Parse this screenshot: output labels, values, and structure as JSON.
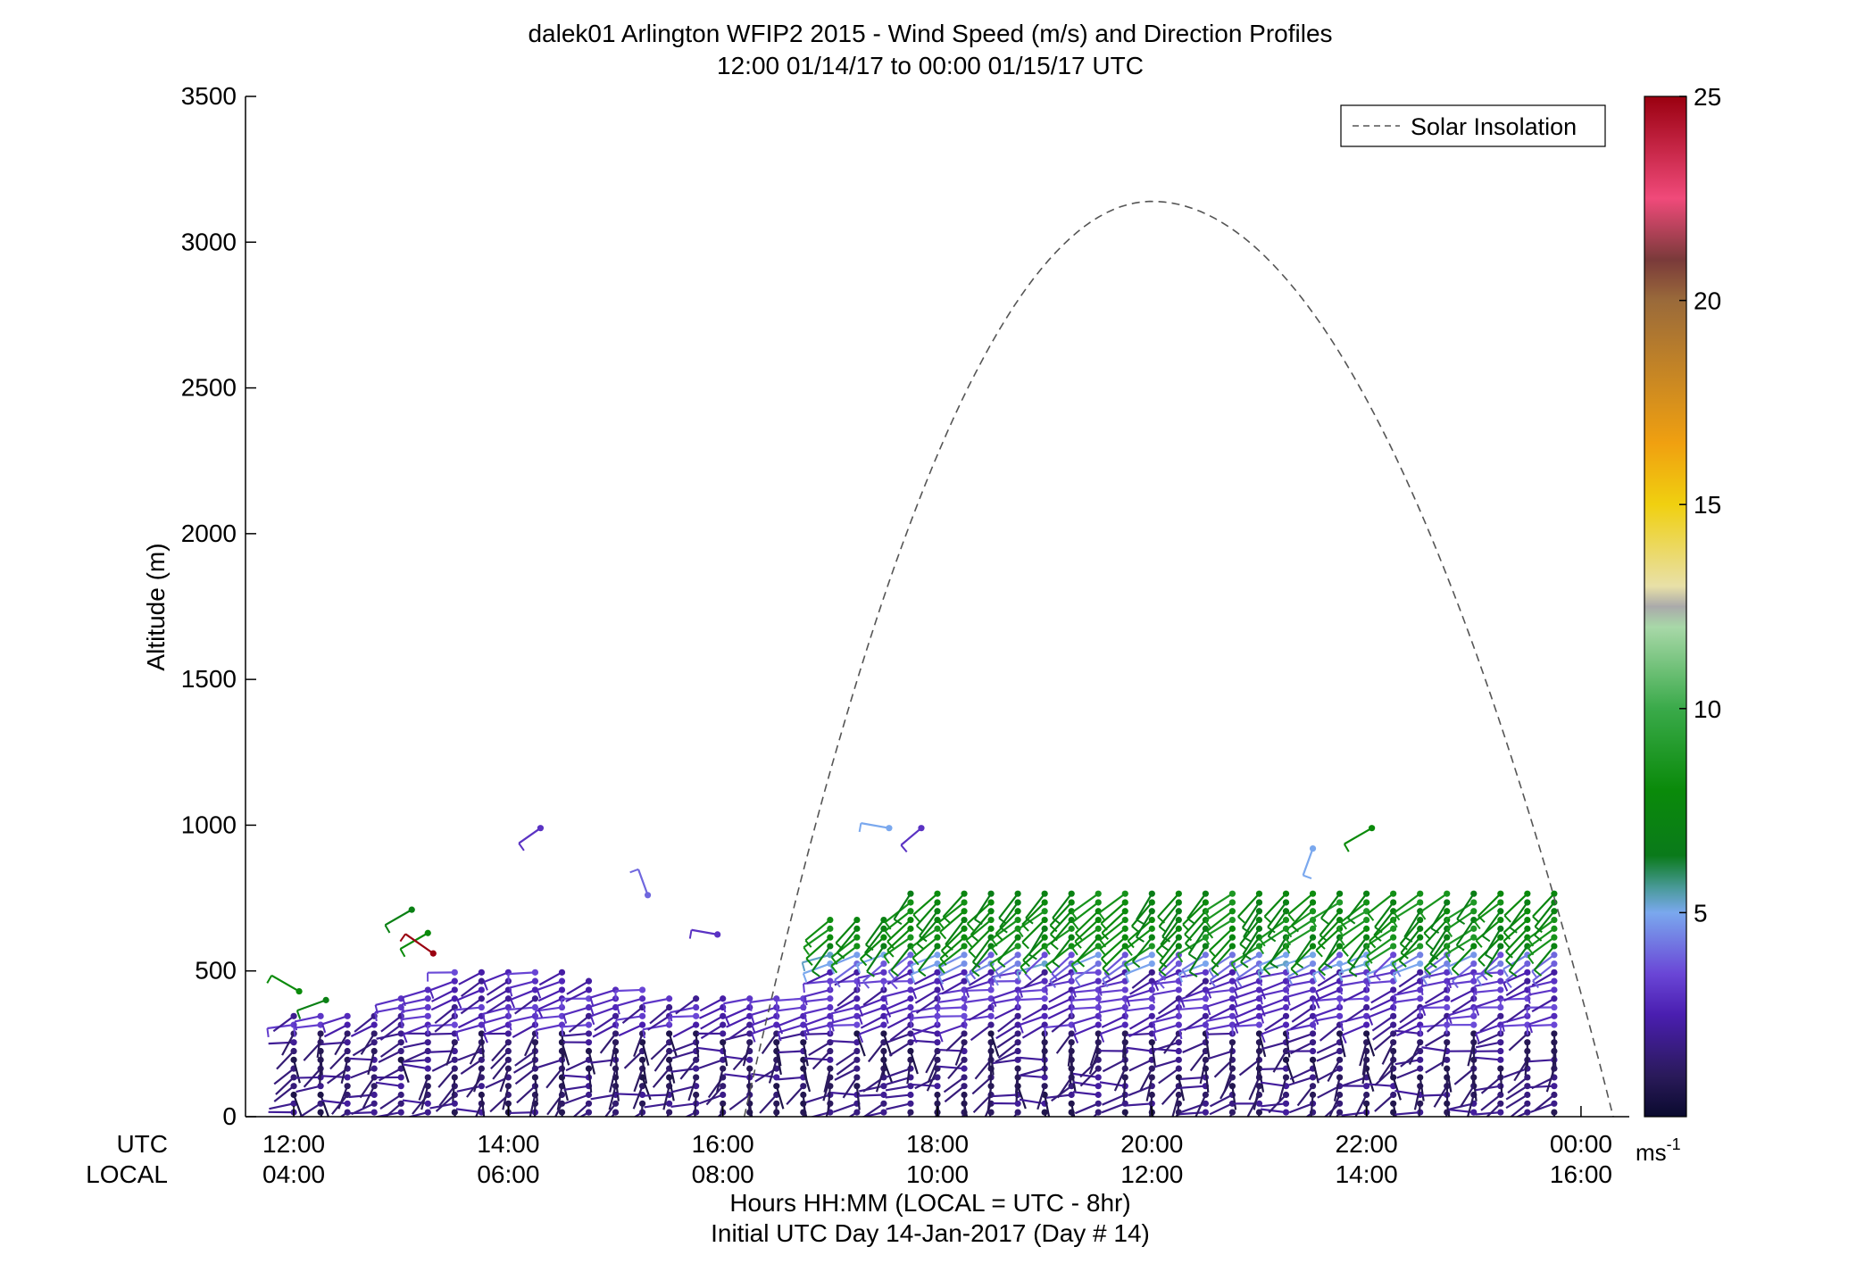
{
  "chart_data": {
    "type": "wind-barb-profile",
    "title": "dalek01 Arlington WFIP2 2015 - Wind Speed (m/s) and Direction Profiles",
    "subtitle": "12:00 01/14/17 to 00:00 01/15/17  UTC",
    "ylabel": "Altitude (m)",
    "xlabel": "Hours HH:MM  (LOCAL = UTC - 8hr)",
    "xlabel2": "Initial UTC Day 14-Jan-2017 (Day # 14)",
    "utc_row_label": "UTC",
    "local_row_label": "LOCAL",
    "ylim": [
      0,
      3500
    ],
    "y_ticks": [
      "0",
      "500",
      "1000",
      "1500",
      "2000",
      "2500",
      "3000",
      "3500"
    ],
    "utc_ticks": [
      "12:00",
      "14:00",
      "16:00",
      "18:00",
      "20:00",
      "22:00",
      "00:00"
    ],
    "local_ticks": [
      "04:00",
      "06:00",
      "08:00",
      "10:00",
      "12:00",
      "14:00",
      "16:00"
    ],
    "x_range_hours": [
      11.55,
      24.45
    ],
    "legend": {
      "entry": "Solar Insolation",
      "placement": "top-right",
      "line_style": "dashed",
      "color": "#555555"
    },
    "solar_insolation": {
      "start_hour": 16.2,
      "end_hour": 24.3,
      "peak_hour": 20.0,
      "peak_altitude": 3140
    },
    "colorbar": {
      "range": [
        0,
        25
      ],
      "ticks": [
        "5",
        "10",
        "15",
        "20",
        "25"
      ],
      "unit_label": "ms",
      "unit_exponent": "-1",
      "color_stops": [
        {
          "value": 0,
          "color": "#0a0a2e"
        },
        {
          "value": 1,
          "color": "#2a1a5a"
        },
        {
          "value": 2.5,
          "color": "#4a1eb0"
        },
        {
          "value": 3.5,
          "color": "#6a46d6"
        },
        {
          "value": 5,
          "color": "#7aa8ee"
        },
        {
          "value": 5.6,
          "color": "#4a9a9a"
        },
        {
          "value": 6.4,
          "color": "#0a7a1a"
        },
        {
          "value": 8,
          "color": "#0a8a0a"
        },
        {
          "value": 10,
          "color": "#3aaa4a"
        },
        {
          "value": 12,
          "color": "#a8d8a8"
        },
        {
          "value": 12.5,
          "color": "#aaaaaa"
        },
        {
          "value": 13,
          "color": "#e8e0a8"
        },
        {
          "value": 15,
          "color": "#f0d010"
        },
        {
          "value": 16.5,
          "color": "#f0a010"
        },
        {
          "value": 20,
          "color": "#9a6a3a"
        },
        {
          "value": 21,
          "color": "#7a3a3a"
        },
        {
          "value": 22.5,
          "color": "#f04a7a"
        },
        {
          "value": 25,
          "color": "#9a0010"
        }
      ]
    },
    "wind_profiles": {
      "time_start": 12.0,
      "time_step_hours": 0.25,
      "profile_count": 48,
      "gate_spacing_m": 30,
      "lowest_gate_m": 15,
      "top_altitude_m": [
        370,
        370,
        370,
        370,
        430,
        460,
        510,
        520,
        520,
        520,
        500,
        470,
        460,
        460,
        420,
        410,
        420,
        420,
        430,
        430,
        700,
        700,
        700,
        780,
        780,
        790,
        780,
        780,
        780,
        780,
        780,
        780,
        780,
        790,
        790,
        790,
        790,
        790,
        790,
        790,
        790,
        790,
        790,
        780,
        780,
        780,
        780,
        780
      ],
      "note_direction": "barbs from the west-southwest near surface veering to southwest aloft"
    },
    "sample_barbs": [
      {
        "t": 12.05,
        "alt": 430,
        "speed": 8,
        "dir": 300
      },
      {
        "t": 12.3,
        "alt": 400,
        "speed": 7,
        "dir": 250
      },
      {
        "t": 13.1,
        "alt": 710,
        "speed": 7,
        "dir": 240
      },
      {
        "t": 13.25,
        "alt": 630,
        "speed": 8,
        "dir": 240
      },
      {
        "t": 13.3,
        "alt": 560,
        "speed": 25,
        "dir": 305
      },
      {
        "t": 14.3,
        "alt": 990,
        "speed": 3,
        "dir": 235
      },
      {
        "t": 15.3,
        "alt": 760,
        "speed": 4,
        "dir": 340
      },
      {
        "t": 15.95,
        "alt": 625,
        "speed": 3,
        "dir": 280
      },
      {
        "t": 17.55,
        "alt": 990,
        "speed": 5,
        "dir": 280
      },
      {
        "t": 17.85,
        "alt": 990,
        "speed": 3,
        "dir": 230
      },
      {
        "t": 21.5,
        "alt": 920,
        "speed": 5,
        "dir": 200
      },
      {
        "t": 22.05,
        "alt": 990,
        "speed": 8,
        "dir": 240
      }
    ]
  }
}
